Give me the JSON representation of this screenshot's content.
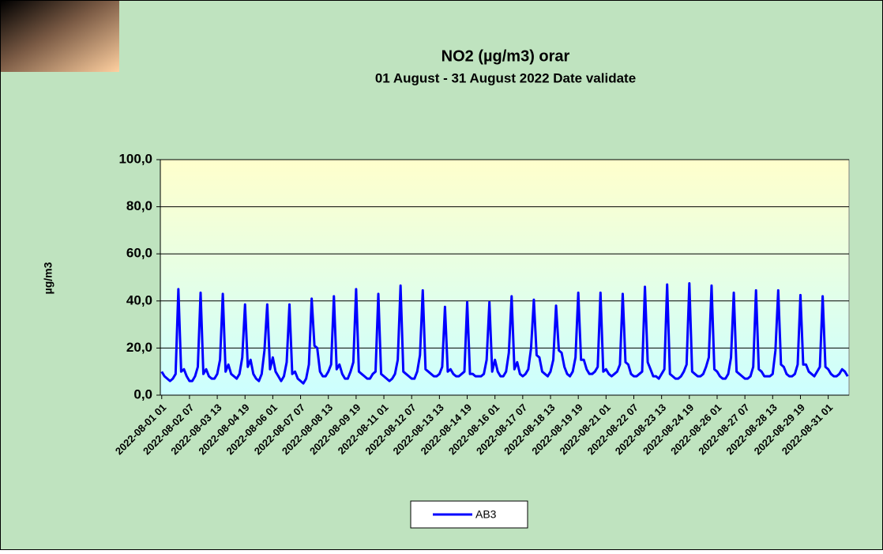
{
  "chart_data": {
    "type": "line",
    "title": "NO2 (µg/m3) orar",
    "subtitle": "01 August - 31 August 2022 Date validate",
    "y_label": "µg/m3",
    "ylim": [
      0,
      100
    ],
    "yticks": [
      {
        "value": 0,
        "label": "0,0"
      },
      {
        "value": 20,
        "label": "20,0"
      },
      {
        "value": 40,
        "label": "40,0"
      },
      {
        "value": 60,
        "label": "60,0"
      },
      {
        "value": 80,
        "label": "80,0"
      },
      {
        "value": 100,
        "label": "100,0"
      }
    ],
    "grid": true,
    "legend": "bottom",
    "categories": [
      "2022-08-01 01",
      null,
      null,
      null,
      null,
      null,
      null,
      null,
      null,
      null,
      "2022-08-02 07",
      null,
      null,
      null,
      null,
      null,
      null,
      null,
      null,
      null,
      "2022-08-03 13",
      null,
      null,
      null,
      null,
      null,
      null,
      null,
      null,
      null,
      "2022-08-04 19",
      null,
      null,
      null,
      null,
      null,
      null,
      null,
      null,
      null,
      "2022-08-06 01",
      null,
      null,
      null,
      null,
      null,
      null,
      null,
      null,
      null,
      "2022-08-07 07",
      null,
      null,
      null,
      null,
      null,
      null,
      null,
      null,
      null,
      "2022-08-08 13",
      null,
      null,
      null,
      null,
      null,
      null,
      null,
      null,
      null,
      "2022-08-09 19",
      null,
      null,
      null,
      null,
      null,
      null,
      null,
      null,
      null,
      "2022-08-11 01",
      null,
      null,
      null,
      null,
      null,
      null,
      null,
      null,
      null,
      "2022-08-12 07",
      null,
      null,
      null,
      null,
      null,
      null,
      null,
      null,
      null,
      "2022-08-13 13",
      null,
      null,
      null,
      null,
      null,
      null,
      null,
      null,
      null,
      "2022-08-14 19",
      null,
      null,
      null,
      null,
      null,
      null,
      null,
      null,
      null,
      "2022-08-16 01",
      null,
      null,
      null,
      null,
      null,
      null,
      null,
      null,
      null,
      "2022-08-17 07",
      null,
      null,
      null,
      null,
      null,
      null,
      null,
      null,
      null,
      "2022-08-18 13",
      null,
      null,
      null,
      null,
      null,
      null,
      null,
      null,
      null,
      "2022-08-19 19",
      null,
      null,
      null,
      null,
      null,
      null,
      null,
      null,
      null,
      "2022-08-21 01",
      null,
      null,
      null,
      null,
      null,
      null,
      null,
      null,
      null,
      "2022-08-22 07",
      null,
      null,
      null,
      null,
      null,
      null,
      null,
      null,
      null,
      "2022-08-23 13",
      null,
      null,
      null,
      null,
      null,
      null,
      null,
      null,
      null,
      "2022-08-24 19",
      null,
      null,
      null,
      null,
      null,
      null,
      null,
      null,
      null,
      "2022-08-26 01",
      null,
      null,
      null,
      null,
      null,
      null,
      null,
      null,
      null,
      "2022-08-27 07",
      null,
      null,
      null,
      null,
      null,
      null,
      null,
      null,
      null,
      "2022-08-28 13",
      null,
      null,
      null,
      null,
      null,
      null,
      null,
      null,
      null,
      "2022-08-29 19",
      null,
      null,
      null,
      null,
      null,
      null,
      null,
      null,
      null,
      "2022-08-31 01",
      null,
      null,
      null,
      null,
      null,
      null,
      null
    ],
    "series": [
      {
        "name": "AB3",
        "color": "#0000ff",
        "values": [
          10,
          8,
          7,
          6,
          7,
          9,
          45,
          10,
          11,
          8,
          6,
          6,
          8,
          12,
          43.5,
          9,
          11,
          8,
          7,
          7,
          9,
          15,
          43,
          10,
          13,
          9,
          8,
          7,
          9,
          16,
          38.5,
          12,
          15,
          9,
          7,
          6,
          9,
          19,
          38.5,
          11,
          16,
          10,
          8,
          6,
          8,
          14,
          38.5,
          9,
          10,
          7,
          6,
          5,
          7,
          13,
          41,
          21,
          20,
          10,
          8,
          8,
          10,
          13,
          42,
          11,
          13,
          9,
          7,
          7,
          10,
          14,
          45,
          10,
          9,
          8,
          7,
          7,
          9,
          10,
          43,
          9,
          8,
          7,
          6,
          7,
          9,
          15,
          46.5,
          10,
          9,
          8,
          7,
          7,
          10,
          17,
          44.5,
          11,
          10,
          9,
          8,
          8,
          9,
          12,
          37.5,
          10,
          11,
          9,
          8,
          8,
          9,
          10,
          39.5,
          9,
          9,
          8,
          8,
          8,
          9,
          15,
          39.5,
          10,
          15,
          10,
          8,
          8,
          10,
          18,
          42,
          11,
          14,
          9,
          8,
          9,
          11,
          20,
          40.5,
          17,
          16,
          10,
          9,
          8,
          10,
          15,
          38,
          19,
          18,
          12,
          9,
          8,
          10,
          16,
          43.5,
          15,
          15,
          11,
          9,
          9,
          10,
          12,
          43.5,
          10,
          11,
          9,
          8,
          9,
          10,
          13,
          43,
          14,
          13,
          9,
          8,
          8,
          9,
          10,
          46,
          14,
          11,
          8,
          8,
          7,
          9,
          11,
          47,
          9,
          8,
          7,
          7,
          8,
          10,
          13,
          47.5,
          10,
          9,
          8,
          8,
          9,
          12,
          16,
          46.5,
          11,
          10,
          8,
          7,
          7,
          9,
          16,
          43.5,
          10,
          9,
          8,
          7,
          7,
          8,
          12,
          44.5,
          11,
          10,
          8,
          8,
          8,
          9,
          19,
          44.5,
          13,
          12,
          9,
          8,
          8,
          9,
          13,
          42.5,
          13,
          13,
          10,
          9,
          8,
          10,
          12,
          42,
          12,
          11,
          9,
          8,
          8,
          9,
          11,
          10,
          8
        ]
      }
    ]
  }
}
